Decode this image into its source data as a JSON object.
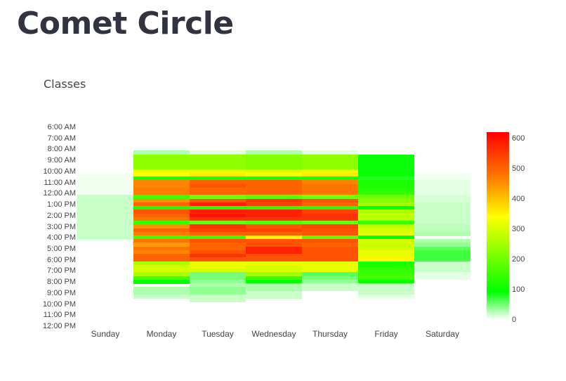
{
  "page": {
    "title": "Comet Circle"
  },
  "chart_data": {
    "type": "heatmap",
    "title": "Classes",
    "xlabel": "",
    "ylabel": "",
    "x": [
      "Sunday",
      "Monday",
      "Tuesday",
      "Wednesday",
      "Thursday",
      "Friday",
      "Saturday"
    ],
    "y_tick_labels": [
      "6:00 AM",
      "7:00 AM",
      "8:00 AM",
      "9:00 AM",
      "10:00 AM",
      "11:00 AM",
      "12:00 AM",
      "1:00 PM",
      "2:00 PM",
      "3:00 PM",
      "4:00 PM",
      "5:00 PM",
      "6:00 PM",
      "7:00 PM",
      "8:00 PM",
      "9:00 PM",
      "10:00 PM",
      "11:00 PM",
      "12:00 PM"
    ],
    "row_interval_minutes": 20,
    "row_start": "6:00 AM",
    "colorscale": {
      "min": 0,
      "max": 620,
      "ticks": [
        0,
        100,
        200,
        300,
        400,
        500,
        600
      ],
      "stops": [
        "#ffffff",
        "#00ff00",
        "#ffff00",
        "#ff8000",
        "#ff0000"
      ]
    },
    "legend_position": "right",
    "grid": false,
    "z": {
      "Sunday": [
        0,
        0,
        0,
        0,
        0,
        0,
        0,
        0,
        0,
        0,
        0,
        0,
        5,
        5,
        5,
        5,
        5,
        5,
        20,
        20,
        20,
        20,
        20,
        20,
        20,
        20,
        20,
        20,
        20,
        20,
        0,
        0,
        0,
        0,
        0,
        0,
        0,
        0,
        0,
        0,
        0,
        0,
        0,
        0,
        0,
        0,
        0,
        0,
        0,
        0,
        0,
        0,
        0,
        0
      ],
      "Monday": [
        0,
        0,
        0,
        0,
        0,
        0,
        30,
        230,
        230,
        230,
        230,
        320,
        340,
        120,
        460,
        460,
        470,
        470,
        150,
        450,
        500,
        120,
        520,
        500,
        480,
        150,
        450,
        500,
        470,
        150,
        480,
        440,
        480,
        460,
        500,
        500,
        260,
        300,
        300,
        260,
        160,
        90,
        0,
        30,
        30,
        20,
        0,
        0,
        0,
        0,
        0,
        0,
        0,
        0
      ],
      "Tuesday": [
        0,
        0,
        0,
        0,
        0,
        0,
        10,
        230,
        230,
        230,
        230,
        320,
        360,
        120,
        500,
        520,
        500,
        500,
        200,
        520,
        580,
        130,
        580,
        600,
        560,
        200,
        560,
        540,
        500,
        150,
        520,
        500,
        500,
        520,
        560,
        520,
        320,
        320,
        300,
        50,
        50,
        40,
        30,
        40,
        40,
        20,
        20,
        0,
        0,
        0,
        0,
        0,
        0,
        0
      ],
      "Wednesday": [
        0,
        0,
        0,
        0,
        0,
        0,
        30,
        220,
        220,
        220,
        220,
        310,
        330,
        120,
        500,
        500,
        500,
        500,
        180,
        560,
        540,
        130,
        580,
        580,
        560,
        180,
        520,
        540,
        500,
        350,
        520,
        520,
        580,
        580,
        520,
        520,
        320,
        300,
        300,
        250,
        150,
        100,
        30,
        30,
        20,
        20,
        0,
        0,
        0,
        0,
        0,
        0,
        0,
        0
      ],
      "Thursday": [
        0,
        0,
        0,
        0,
        0,
        0,
        10,
        230,
        230,
        230,
        230,
        320,
        360,
        120,
        460,
        480,
        480,
        480,
        200,
        520,
        500,
        130,
        540,
        560,
        560,
        200,
        540,
        520,
        520,
        180,
        520,
        500,
        520,
        520,
        520,
        520,
        320,
        320,
        320,
        60,
        50,
        40,
        20,
        20,
        0,
        0,
        0,
        0,
        0,
        0,
        0,
        0,
        0,
        0
      ],
      "Friday": [
        0,
        0,
        0,
        0,
        0,
        0,
        0,
        90,
        90,
        90,
        90,
        90,
        90,
        80,
        120,
        120,
        130,
        140,
        200,
        220,
        250,
        100,
        260,
        280,
        270,
        150,
        280,
        300,
        320,
        90,
        300,
        290,
        300,
        320,
        320,
        350,
        120,
        130,
        140,
        150,
        160,
        100,
        20,
        20,
        20,
        10,
        0,
        0,
        0,
        0,
        0,
        0,
        0,
        0
      ],
      "Saturday": [
        0,
        0,
        0,
        0,
        0,
        0,
        0,
        0,
        0,
        0,
        0,
        0,
        5,
        5,
        10,
        10,
        10,
        10,
        15,
        15,
        20,
        20,
        20,
        20,
        20,
        20,
        25,
        25,
        30,
        0,
        30,
        40,
        60,
        70,
        70,
        70,
        20,
        20,
        20,
        10,
        10,
        0,
        0,
        0,
        0,
        0,
        0,
        0,
        0,
        0,
        0,
        0,
        0,
        0
      ]
    }
  }
}
